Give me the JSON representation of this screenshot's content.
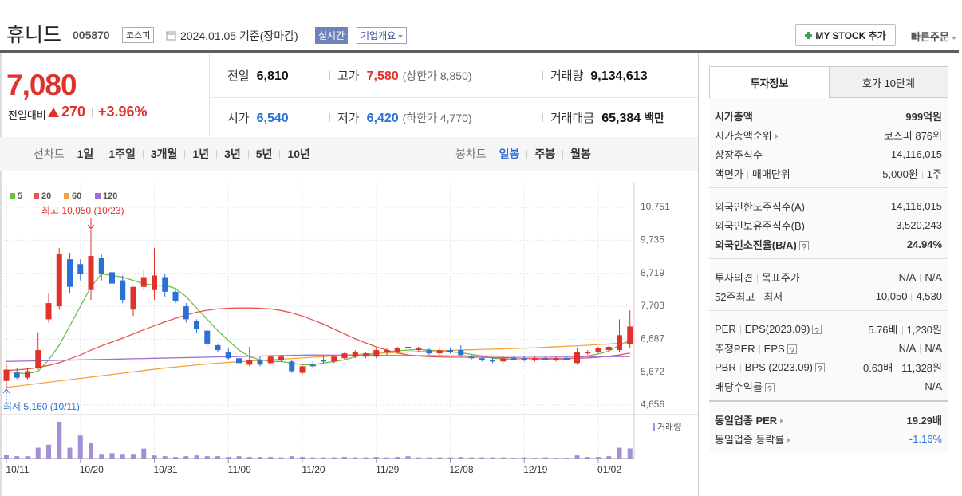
{
  "header": {
    "name": "휴니드",
    "code": "005870",
    "market": "코스피",
    "date": "2024.01.05 기준(장마감)",
    "realtime": "실시간",
    "company_overview": "기업개요",
    "my_stock": "MY STOCK 추가",
    "quick_order": "빠른주문"
  },
  "summary": {
    "price": "7,080",
    "change_label": "전일대비",
    "change": "270",
    "change_rate": "+3.96%",
    "up_color": "#e0312b",
    "table": [
      [
        {
          "label": "전일",
          "value": "6,810"
        },
        {
          "label": "고가",
          "value": "7,580",
          "note": "(상한가 8,850)",
          "color": "#e0312b"
        },
        {
          "label": "거래량",
          "value": "9,134,613"
        }
      ],
      [
        {
          "label": "시가",
          "value": "6,540",
          "color": "#2a71d6"
        },
        {
          "label": "저가",
          "value": "6,420",
          "note": "(하한가 4,770)",
          "color": "#2a71d6"
        },
        {
          "label": "거래대금",
          "value": "65,384",
          "unit": "백만"
        }
      ]
    ]
  },
  "chart_tabs": {
    "line_label": "선차트",
    "line_periods": [
      "1일",
      "1주일",
      "3개월",
      "1년",
      "3년",
      "5년",
      "10년"
    ],
    "candle_label": "봉차트",
    "candle_periods": [
      "일봉",
      "주봉",
      "월봉"
    ],
    "selected_candle_period": 0
  },
  "chart_data": {
    "type": "candlestick",
    "grid": true,
    "up_color": "#e0312b",
    "down_color": "#2a71d6",
    "categories": [
      "10/11",
      null,
      null,
      null,
      null,
      null,
      null,
      "10/20",
      null,
      null,
      null,
      null,
      null,
      null,
      "10/31",
      null,
      null,
      null,
      null,
      null,
      null,
      "11/09",
      null,
      null,
      null,
      null,
      null,
      null,
      "11/20",
      null,
      null,
      null,
      null,
      null,
      null,
      "11/29",
      null,
      null,
      null,
      null,
      null,
      null,
      "12/08",
      null,
      null,
      null,
      null,
      null,
      null,
      "12/19",
      null,
      null,
      null,
      null,
      null,
      null,
      "01/02",
      null,
      null,
      null
    ],
    "open": [
      5400,
      5650,
      5500,
      5800,
      7300,
      7700,
      9150,
      9000,
      8200,
      9200,
      8750,
      8500,
      7600,
      8300,
      8200,
      8600,
      8150,
      7700,
      7250,
      6950,
      6500,
      6300,
      6100,
      5900,
      6050,
      5950,
      6050,
      6000,
      5650,
      5900,
      6050,
      6000,
      6100,
      6150,
      6150,
      6150,
      6300,
      6300,
      6450,
      6350,
      6350,
      6250,
      6350,
      6350,
      6150,
      6100,
      6050,
      6000,
      6100,
      6100,
      6050,
      6100,
      6050,
      6100,
      5950,
      6250,
      6300,
      6350,
      6350,
      6540
    ],
    "high": [
      5900,
      5800,
      5800,
      6900,
      8100,
      9500,
      9350,
      9150,
      10050,
      9300,
      8900,
      8650,
      8300,
      8800,
      9500,
      8700,
      8250,
      7800,
      7300,
      7000,
      6550,
      6400,
      6200,
      6450,
      6150,
      6200,
      6200,
      6050,
      5900,
      6000,
      6150,
      6200,
      6300,
      6350,
      6300,
      6400,
      6400,
      6450,
      6700,
      6450,
      6400,
      6450,
      6400,
      6500,
      6200,
      6150,
      6100,
      6150,
      6150,
      6150,
      6150,
      6150,
      6150,
      6150,
      6400,
      6350,
      6450,
      6500,
      7300,
      7580
    ],
    "low": [
      5160,
      5450,
      5450,
      5750,
      7200,
      7600,
      8100,
      8500,
      7900,
      8500,
      8200,
      7800,
      7400,
      8200,
      7900,
      8000,
      7800,
      7200,
      6900,
      6500,
      6300,
      6050,
      5900,
      5850,
      5850,
      5900,
      6000,
      5650,
      5600,
      5800,
      5950,
      5950,
      6050,
      6100,
      6100,
      6100,
      6200,
      6250,
      6350,
      6300,
      6200,
      6200,
      6250,
      6150,
      6050,
      6000,
      5950,
      5950,
      6050,
      6000,
      6000,
      6050,
      6000,
      6050,
      5900,
      6200,
      6250,
      6300,
      6300,
      6420
    ],
    "close": [
      5750,
      5500,
      5700,
      6350,
      7800,
      9300,
      8300,
      8700,
      9250,
      8700,
      8400,
      7900,
      8300,
      8600,
      8650,
      8150,
      7850,
      7300,
      7000,
      6550,
      6350,
      6100,
      5950,
      6050,
      5900,
      6150,
      6150,
      5700,
      5850,
      5850,
      6000,
      6150,
      6250,
      6300,
      6250,
      6350,
      6350,
      6400,
      6400,
      6400,
      6250,
      6350,
      6300,
      6200,
      6100,
      6050,
      6000,
      6100,
      6050,
      6050,
      6100,
      6050,
      6100,
      6050,
      6300,
      6300,
      6400,
      6450,
      6810,
      7080
    ],
    "series": [
      {
        "name": "5",
        "color": "#6cbf4b",
        "values": [
          5700,
          5650,
          5620,
          5700,
          6050,
          6500,
          7100,
          7700,
          8300,
          8700,
          8650,
          8600,
          8500,
          8400,
          8350,
          8350,
          8250,
          8000,
          7650,
          7300,
          6950,
          6650,
          6350,
          6150,
          6050,
          6000,
          6000,
          5950,
          5900,
          5900,
          5950,
          6000,
          6050,
          6150,
          6200,
          6250,
          6300,
          6330,
          6350,
          6370,
          6350,
          6330,
          6300,
          6270,
          6220,
          6170,
          6100,
          6080,
          6060,
          6050,
          6060,
          6070,
          6070,
          6070,
          6120,
          6170,
          6230,
          6320,
          6500,
          6650
        ]
      },
      {
        "name": "20",
        "color": "#e8534f",
        "values": [
          5720,
          5740,
          5770,
          5810,
          5880,
          5960,
          6080,
          6200,
          6350,
          6480,
          6600,
          6720,
          6850,
          6980,
          7100,
          7220,
          7330,
          7430,
          7520,
          7580,
          7620,
          7640,
          7650,
          7650,
          7640,
          7620,
          7570,
          7500,
          7400,
          7280,
          7150,
          7000,
          6850,
          6700,
          6570,
          6450,
          6350,
          6260,
          6200,
          6170,
          6150,
          6140,
          6130,
          6130,
          6130,
          6130,
          6120,
          6120,
          6110,
          6100,
          6100,
          6100,
          6100,
          6100,
          6100,
          6110,
          6130,
          6160,
          6200,
          6260
        ]
      },
      {
        "name": "60",
        "color": "#f5a142",
        "values": [
          5200,
          5240,
          5280,
          5320,
          5360,
          5400,
          5440,
          5480,
          5520,
          5560,
          5600,
          5640,
          5680,
          5720,
          5760,
          5800,
          5830,
          5860,
          5890,
          5920,
          5950,
          5970,
          5990,
          6010,
          6030,
          6050,
          6070,
          6090,
          6110,
          6130,
          6150,
          6170,
          6190,
          6210,
          6230,
          6250,
          6264,
          6278,
          6292,
          6306,
          6320,
          6330,
          6340,
          6350,
          6360,
          6370,
          6380,
          6390,
          6400,
          6410,
          6420,
          6436,
          6452,
          6468,
          6484,
          6500,
          6520,
          6540,
          6560,
          6580
        ]
      },
      {
        "name": "120",
        "color": "#a16fd0",
        "values": [
          6000,
          6007,
          6014,
          6021,
          6028,
          6035,
          6042,
          6049,
          6056,
          6063,
          6070,
          6077,
          6084,
          6091,
          6098,
          6105,
          6112,
          6119,
          6126,
          6133,
          6140,
          6147,
          6154,
          6161,
          6168,
          6175,
          6182,
          6189,
          6196,
          6200,
          6198,
          6196,
          6194,
          6192,
          6190,
          6188,
          6186,
          6184,
          6182,
          6180,
          6178,
          6176,
          6174,
          6172,
          6170,
          6168,
          6166,
          6164,
          6162,
          6160,
          6158,
          6156,
          6154,
          6152,
          6150,
          6150,
          6150,
          6150,
          6150,
          6150
        ]
      }
    ],
    "volume": {
      "name": "거래량",
      "color": "#a48fd6",
      "ylim": [
        0,
        35000000
      ],
      "values": [
        3500000,
        2100000,
        2100000,
        9800000,
        12600000,
        33600000,
        9800000,
        21000000,
        14000000,
        4200000,
        4900000,
        4200000,
        4200000,
        9000000,
        2800000,
        2100000,
        1400000,
        2100000,
        2800000,
        2100000,
        2100000,
        1400000,
        2100000,
        1400000,
        1400000,
        1400000,
        1000000,
        2100000,
        1400000,
        1000000,
        1000000,
        1000000,
        1400000,
        1000000,
        1000000,
        1400000,
        1000000,
        1400000,
        2100000,
        1000000,
        1000000,
        1000000,
        1000000,
        1400000,
        1000000,
        1000000,
        1000000,
        1000000,
        700000,
        1000000,
        700000,
        1000000,
        700000,
        700000,
        2800000,
        1400000,
        1400000,
        2100000,
        9800000,
        9134613
      ]
    },
    "ylim": [
      4656,
      10751
    ],
    "yticks": [
      {
        "value": 10751,
        "label": "10,751"
      },
      {
        "value": 9735,
        "label": "9,735"
      },
      {
        "value": 8719,
        "label": "8,719"
      },
      {
        "value": 7703,
        "label": "7,703"
      },
      {
        "value": 6687,
        "label": "6,687"
      },
      {
        "value": 5672,
        "label": "5,672"
      },
      {
        "value": 4656,
        "label": "4,656"
      }
    ],
    "annotations": [
      {
        "text": "최고 10,050 (10/23)",
        "color": "#e0312b"
      },
      {
        "text": "최저 5,160 (10/11)",
        "color": "#2a71d6"
      }
    ]
  },
  "investment_info": {
    "tabs": [
      "투자정보",
      "호가 10단계"
    ],
    "groups": [
      {
        "rows": [
          {
            "label": [
              "시가총액"
            ],
            "value": [
              "999억원"
            ],
            "bold": true
          },
          {
            "label": [
              "시가총액순위"
            ],
            "link": true,
            "value": [
              "코스피 876위"
            ]
          },
          {
            "label": [
              "상장주식수"
            ],
            "value": [
              "14,116,015"
            ]
          },
          {
            "label": [
              "액면가",
              "매매단위"
            ],
            "value": [
              "5,000원",
              "1주"
            ]
          }
        ]
      },
      {
        "rows": [
          {
            "label": [
              "외국인한도주식수(A)"
            ],
            "value": [
              "14,116,015"
            ]
          },
          {
            "label": [
              "외국인보유주식수(B)"
            ],
            "value": [
              "3,520,243"
            ]
          },
          {
            "label": [
              "외국인소진율(B/A)"
            ],
            "help": true,
            "bold": true,
            "value": [
              "24.94%"
            ]
          }
        ]
      },
      {
        "rows": [
          {
            "label": [
              "투자의견",
              "목표주가"
            ],
            "value": [
              "N/A",
              "N/A"
            ]
          },
          {
            "label": [
              "52주최고",
              "최저"
            ],
            "value": [
              "10,050",
              "4,530"
            ]
          }
        ]
      },
      {
        "rows": [
          {
            "label": [
              "PER",
              "EPS(2023.09)"
            ],
            "help": true,
            "value": [
              "5.76배",
              "1,230원"
            ]
          },
          {
            "label": [
              "추정PER",
              "EPS"
            ],
            "help": true,
            "value": [
              "N/A",
              "N/A"
            ]
          },
          {
            "label": [
              "PBR",
              "BPS (2023.09)"
            ],
            "help": true,
            "value": [
              "0.63배",
              "11,328원"
            ]
          },
          {
            "label": [
              "배당수익률"
            ],
            "help": true,
            "value": [
              "N/A"
            ]
          }
        ]
      },
      {
        "rows": [
          {
            "label": [
              "동일업종 PER"
            ],
            "link": true,
            "bold": true,
            "value": [
              "19.29배"
            ]
          },
          {
            "label": [
              "동일업종 등락률"
            ],
            "link": true,
            "value": [
              "-1.16%"
            ],
            "color": "#2a71d6"
          }
        ]
      }
    ]
  }
}
